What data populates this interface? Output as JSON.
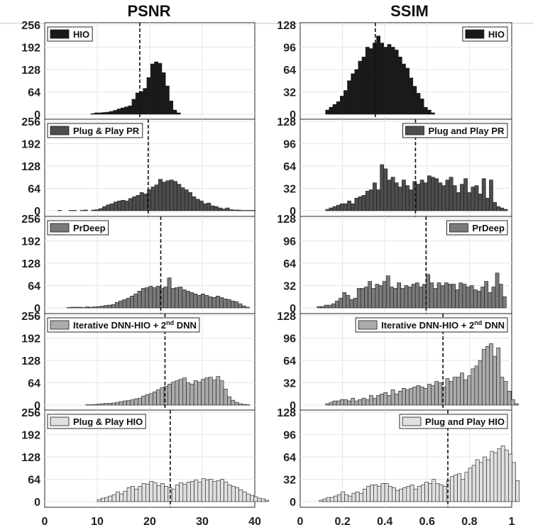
{
  "figure": {
    "columns": [
      "PSNR",
      "SSIM"
    ]
  },
  "chart_data": [
    {
      "type": "bar",
      "metric": "PSNR",
      "title": "PSNR",
      "legend": "HIO",
      "legend_position": "top-left",
      "color": "#1a1a1a",
      "xlim": [
        0,
        40
      ],
      "ylim": [
        0,
        256
      ],
      "xticks": [
        0,
        10,
        20,
        30,
        40
      ],
      "yticks": [
        0,
        64,
        128,
        192,
        256
      ],
      "bin_start": 8.8,
      "bin_width": 0.71,
      "values": [
        2,
        4,
        4,
        5,
        6,
        8,
        11,
        15,
        18,
        21,
        24,
        43,
        61,
        65,
        74,
        105,
        144,
        150,
        146,
        119,
        81,
        38,
        12,
        4
      ],
      "mean_line": 18.1,
      "grid": true
    },
    {
      "type": "bar",
      "metric": "PSNR",
      "legend": "Plug & Play PR",
      "legend_position": "top-left",
      "color": "#4d4d4d",
      "xlim": [
        0,
        40
      ],
      "ylim": [
        0,
        256
      ],
      "xticks": [
        0,
        10,
        20,
        30,
        40
      ],
      "yticks": [
        0,
        64,
        128,
        192,
        256
      ],
      "bin_start": 2.5,
      "bin_width": 0.71,
      "values": [
        1,
        0,
        0,
        1,
        1,
        0,
        1,
        2,
        0,
        2,
        3,
        6,
        12,
        17,
        20,
        25,
        28,
        30,
        28,
        35,
        40,
        44,
        52,
        48,
        60,
        68,
        74,
        90,
        82,
        86,
        88,
        84,
        76,
        66,
        60,
        52,
        40,
        33,
        28,
        20,
        22,
        14,
        12,
        8,
        5,
        8,
        3,
        2,
        2,
        1,
        1,
        1,
        1
      ],
      "mean_line": 19.7,
      "grid": true
    },
    {
      "type": "bar",
      "metric": "PSNR",
      "legend": "PrDeep",
      "legend_position": "top-left",
      "color": "#7a7a7a",
      "xlim": [
        0,
        40
      ],
      "ylim": [
        0,
        256
      ],
      "xticks": [
        0,
        10,
        20,
        30,
        40
      ],
      "yticks": [
        0,
        64,
        128,
        192,
        256
      ],
      "bin_start": 4.2,
      "bin_width": 0.71,
      "values": [
        1,
        2,
        2,
        2,
        1,
        3,
        2,
        3,
        4,
        5,
        7,
        8,
        10,
        16,
        20,
        24,
        28,
        34,
        40,
        48,
        56,
        58,
        62,
        58,
        62,
        56,
        60,
        86,
        56,
        58,
        60,
        52,
        48,
        44,
        40,
        36,
        40,
        36,
        32,
        30,
        34,
        30,
        26,
        24,
        20,
        18,
        12,
        6,
        2
      ],
      "mean_line": 22.1,
      "grid": true
    },
    {
      "type": "bar",
      "metric": "PSNR",
      "legend": "Iterative DNN-HIO + 2nd DNN",
      "legend_position": "top-left",
      "color": "#ababab",
      "xlim": [
        0,
        40
      ],
      "ylim": [
        0,
        256
      ],
      "xticks": [
        0,
        10,
        20,
        30,
        40
      ],
      "yticks": [
        0,
        64,
        128,
        192,
        256
      ],
      "bin_start": 7.8,
      "bin_width": 0.71,
      "values": [
        1,
        1,
        2,
        3,
        4,
        5,
        5,
        6,
        8,
        10,
        12,
        13,
        15,
        18,
        20,
        26,
        30,
        33,
        38,
        44,
        50,
        54,
        60,
        66,
        70,
        74,
        78,
        64,
        60,
        70,
        66,
        74,
        78,
        80,
        72,
        82,
        70,
        46,
        24,
        14,
        8,
        4,
        2,
        1
      ],
      "mean_line": 22.9,
      "grid": true
    },
    {
      "type": "bar",
      "metric": "PSNR",
      "legend": "Plug & Play HIO",
      "legend_position": "top-left",
      "color": "#e0e0e0",
      "xlim": [
        0,
        40
      ],
      "ylim": [
        0,
        256
      ],
      "xticks": [
        0,
        10,
        20,
        30,
        40
      ],
      "yticks": [
        0,
        64,
        128,
        192,
        256
      ],
      "bin_start": 10.0,
      "bin_width": 0.71,
      "values": [
        6,
        10,
        12,
        16,
        20,
        28,
        22,
        30,
        40,
        44,
        36,
        44,
        52,
        50,
        58,
        54,
        46,
        52,
        44,
        40,
        36,
        48,
        54,
        50,
        56,
        58,
        62,
        56,
        66,
        62,
        64,
        58,
        60,
        64,
        56,
        48,
        44,
        40,
        34,
        28,
        22,
        18,
        14,
        10,
        8,
        4
      ],
      "mean_line": 23.9,
      "grid": true
    },
    {
      "type": "bar",
      "metric": "SSIM",
      "title": "SSIM",
      "legend": "HIO",
      "legend_position": "top-right",
      "color": "#1a1a1a",
      "xlim": [
        0,
        1
      ],
      "ylim": [
        0,
        128
      ],
      "xticks": [
        0,
        0.2,
        0.4,
        0.6,
        0.8,
        1
      ],
      "yticks": [
        0,
        32,
        64,
        96,
        128
      ],
      "bin_start": 0.12,
      "bin_width": 0.0172,
      "values": [
        6,
        10,
        14,
        18,
        26,
        34,
        48,
        58,
        64,
        76,
        82,
        96,
        94,
        102,
        112,
        102,
        96,
        100,
        96,
        92,
        82,
        72,
        66,
        52,
        40,
        30,
        22,
        10,
        6,
        2
      ],
      "mean_line": 0.355,
      "grid": true
    },
    {
      "type": "bar",
      "metric": "SSIM",
      "legend": "Plug and Play PR",
      "legend_position": "top-right",
      "color": "#4d4d4d",
      "xlim": [
        0,
        1
      ],
      "ylim": [
        0,
        128
      ],
      "xticks": [
        0,
        0.2,
        0.4,
        0.6,
        0.8,
        1
      ],
      "yticks": [
        0,
        32,
        64,
        96,
        128
      ],
      "bin_start": 0.12,
      "bin_width": 0.0172,
      "values": [
        2,
        4,
        6,
        8,
        10,
        10,
        14,
        10,
        18,
        20,
        22,
        28,
        30,
        40,
        30,
        66,
        60,
        44,
        48,
        40,
        34,
        44,
        36,
        30,
        42,
        38,
        44,
        40,
        50,
        48,
        46,
        40,
        36,
        44,
        48,
        36,
        26,
        38,
        46,
        26,
        34,
        36,
        24,
        46,
        18,
        44,
        12,
        6,
        4,
        2
      ],
      "mean_line": 0.545,
      "grid": true
    },
    {
      "type": "bar",
      "metric": "SSIM",
      "legend": "PrDeep",
      "legend_position": "top-right",
      "color": "#7a7a7a",
      "xlim": [
        0,
        1
      ],
      "ylim": [
        0,
        128
      ],
      "xticks": [
        0,
        0.2,
        0.4,
        0.6,
        0.8,
        1
      ],
      "yticks": [
        0,
        32,
        64,
        96,
        128
      ],
      "bin_start": 0.08,
      "bin_width": 0.0172,
      "values": [
        2,
        2,
        4,
        4,
        6,
        10,
        14,
        22,
        18,
        12,
        14,
        28,
        28,
        30,
        38,
        28,
        34,
        32,
        38,
        46,
        30,
        28,
        36,
        28,
        32,
        30,
        34,
        36,
        30,
        34,
        48,
        36,
        28,
        36,
        32,
        36,
        34,
        34,
        26,
        36,
        34,
        30,
        32,
        26,
        24,
        30,
        38,
        22,
        30,
        50,
        34,
        16
      ],
      "mean_line": 0.595,
      "grid": true
    },
    {
      "type": "bar",
      "metric": "SSIM",
      "legend": "Iterative DNN-HIO + 2nd DNN",
      "legend_position": "top-right",
      "color": "#ababab",
      "xlim": [
        0,
        1
      ],
      "ylim": [
        0,
        128
      ],
      "xticks": [
        0,
        0.2,
        0.4,
        0.6,
        0.8,
        1
      ],
      "yticks": [
        0,
        32,
        64,
        96,
        128
      ],
      "bin_start": 0.12,
      "bin_width": 0.0172,
      "values": [
        2,
        4,
        6,
        6,
        8,
        8,
        6,
        10,
        6,
        8,
        10,
        8,
        14,
        10,
        14,
        16,
        18,
        14,
        22,
        16,
        20,
        24,
        22,
        24,
        26,
        28,
        26,
        24,
        30,
        28,
        34,
        32,
        26,
        38,
        34,
        40,
        40,
        46,
        36,
        42,
        52,
        56,
        64,
        80,
        84,
        88,
        70,
        82,
        40,
        34,
        20,
        8,
        2
      ],
      "mean_line": 0.675,
      "grid": true
    },
    {
      "type": "bar",
      "metric": "SSIM",
      "legend": "Plug and Play HIO",
      "legend_position": "top-right",
      "color": "#e0e0e0",
      "xlim": [
        0,
        1
      ],
      "ylim": [
        0,
        128
      ],
      "xticks": [
        0,
        0.2,
        0.4,
        0.6,
        0.8,
        1
      ],
      "yticks": [
        0,
        32,
        64,
        96,
        128
      ],
      "bin_start": 0.09,
      "bin_width": 0.0172,
      "values": [
        2,
        4,
        6,
        6,
        8,
        10,
        14,
        10,
        8,
        12,
        14,
        12,
        18,
        22,
        24,
        24,
        22,
        26,
        26,
        22,
        20,
        16,
        18,
        20,
        22,
        24,
        18,
        22,
        24,
        28,
        26,
        32,
        26,
        24,
        22,
        30,
        36,
        38,
        40,
        32,
        42,
        48,
        52,
        60,
        56,
        64,
        60,
        72,
        70,
        76,
        80,
        74,
        68,
        56,
        30
      ],
      "mean_line": 0.698,
      "grid": true
    }
  ]
}
